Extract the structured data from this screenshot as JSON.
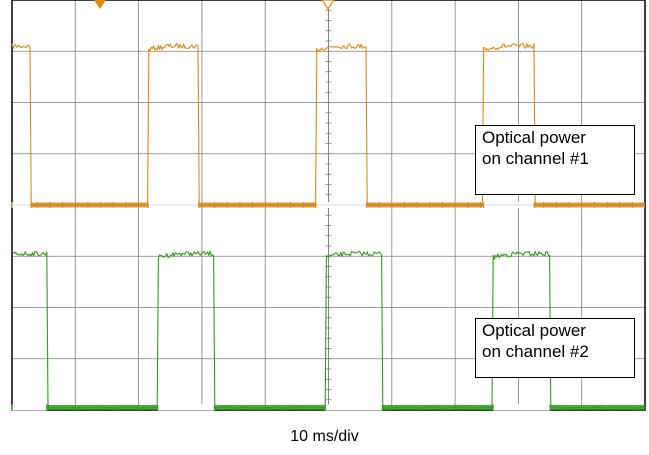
{
  "chart_data": {
    "type": "line",
    "grid": true,
    "divisions": {
      "x": 10,
      "y": 8
    },
    "xlabel": "10 ms/div",
    "ylim": [
      0,
      8
    ],
    "series": [
      {
        "name": "Optical power on channel #1",
        "label_lines": [
          "Optical power",
          "on channel #1"
        ],
        "color": "#e08a10",
        "low": 4.0,
        "high": 7.1,
        "period_div": 2.65,
        "first_rise_div": 2.15,
        "pulse_width_div": 0.8,
        "unit": "divisions"
      },
      {
        "name": "Optical power on channel #2",
        "label_lines": [
          "Optical power",
          "on channel #2"
        ],
        "color": "#2f9e1c",
        "low": 0.05,
        "high": 3.05,
        "period_div": 2.65,
        "first_rise_div": -0.35,
        "pulse_width_div": 0.9,
        "unit": "divisions"
      }
    ]
  },
  "colors": {
    "grid": "#7f7f7f",
    "frame": "#000000",
    "background": "#ffffff"
  },
  "markers": [
    "trigger-arrow-icon",
    "center-marker-icon"
  ]
}
